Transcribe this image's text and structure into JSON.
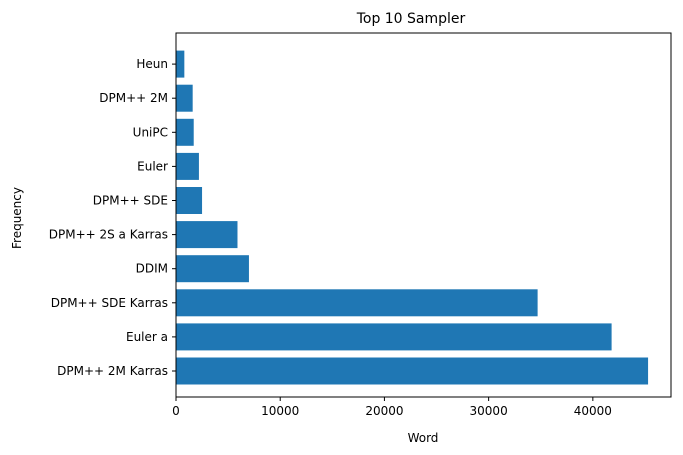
{
  "chart_data": {
    "type": "bar",
    "orientation": "horizontal",
    "title": "Top 10 Sampler",
    "xlabel": "Word",
    "ylabel": "Frequency",
    "xlim": [
      0,
      47500
    ],
    "xticks": [
      0,
      10000,
      20000,
      30000,
      40000
    ],
    "xtick_labels": [
      "0",
      "10000",
      "20000",
      "30000",
      "40000"
    ],
    "categories": [
      "DPM++ 2M Karras",
      "Euler a",
      "DPM++ SDE Karras",
      "DDIM",
      "DPM++ 2S a Karras",
      "DPM++ SDE",
      "Euler",
      "UniPC",
      "DPM++ 2M",
      "Heun"
    ],
    "values": [
      45300,
      41800,
      34700,
      7000,
      5900,
      2500,
      2200,
      1700,
      1600,
      800
    ],
    "bar_color": "#1f77b4",
    "grid": false
  }
}
